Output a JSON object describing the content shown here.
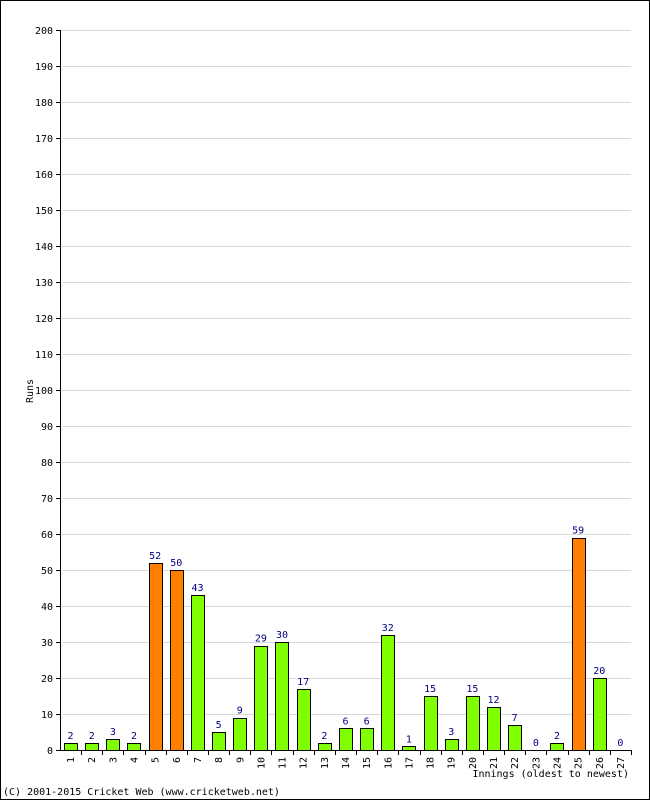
{
  "chart_data": {
    "type": "bar",
    "title": "",
    "xlabel": "Innings (oldest to newest)",
    "ylabel": "Runs",
    "ylim": [
      0,
      200
    ],
    "y_ticks": [
      0,
      10,
      20,
      30,
      40,
      50,
      60,
      70,
      80,
      90,
      100,
      110,
      120,
      130,
      140,
      150,
      160,
      170,
      180,
      190,
      200
    ],
    "grid": true,
    "categories": [
      "1",
      "2",
      "3",
      "4",
      "5",
      "6",
      "7",
      "8",
      "9",
      "10",
      "11",
      "12",
      "13",
      "14",
      "15",
      "16",
      "17",
      "18",
      "19",
      "20",
      "21",
      "22",
      "23",
      "24",
      "25",
      "26",
      "27"
    ],
    "values": [
      2,
      2,
      3,
      2,
      52,
      50,
      43,
      5,
      9,
      29,
      30,
      17,
      2,
      6,
      6,
      32,
      1,
      15,
      3,
      15,
      12,
      7,
      0,
      2,
      59,
      20,
      0
    ],
    "colors": {
      "default_bar": "#80ff00",
      "fifty_plus_bar": "#ff8000",
      "bar_outline": "#000000",
      "data_label": "#000080",
      "grid": "#d8d8d8"
    }
  },
  "footer": "(C) 2001-2015 Cricket Web (www.cricketweb.net)"
}
